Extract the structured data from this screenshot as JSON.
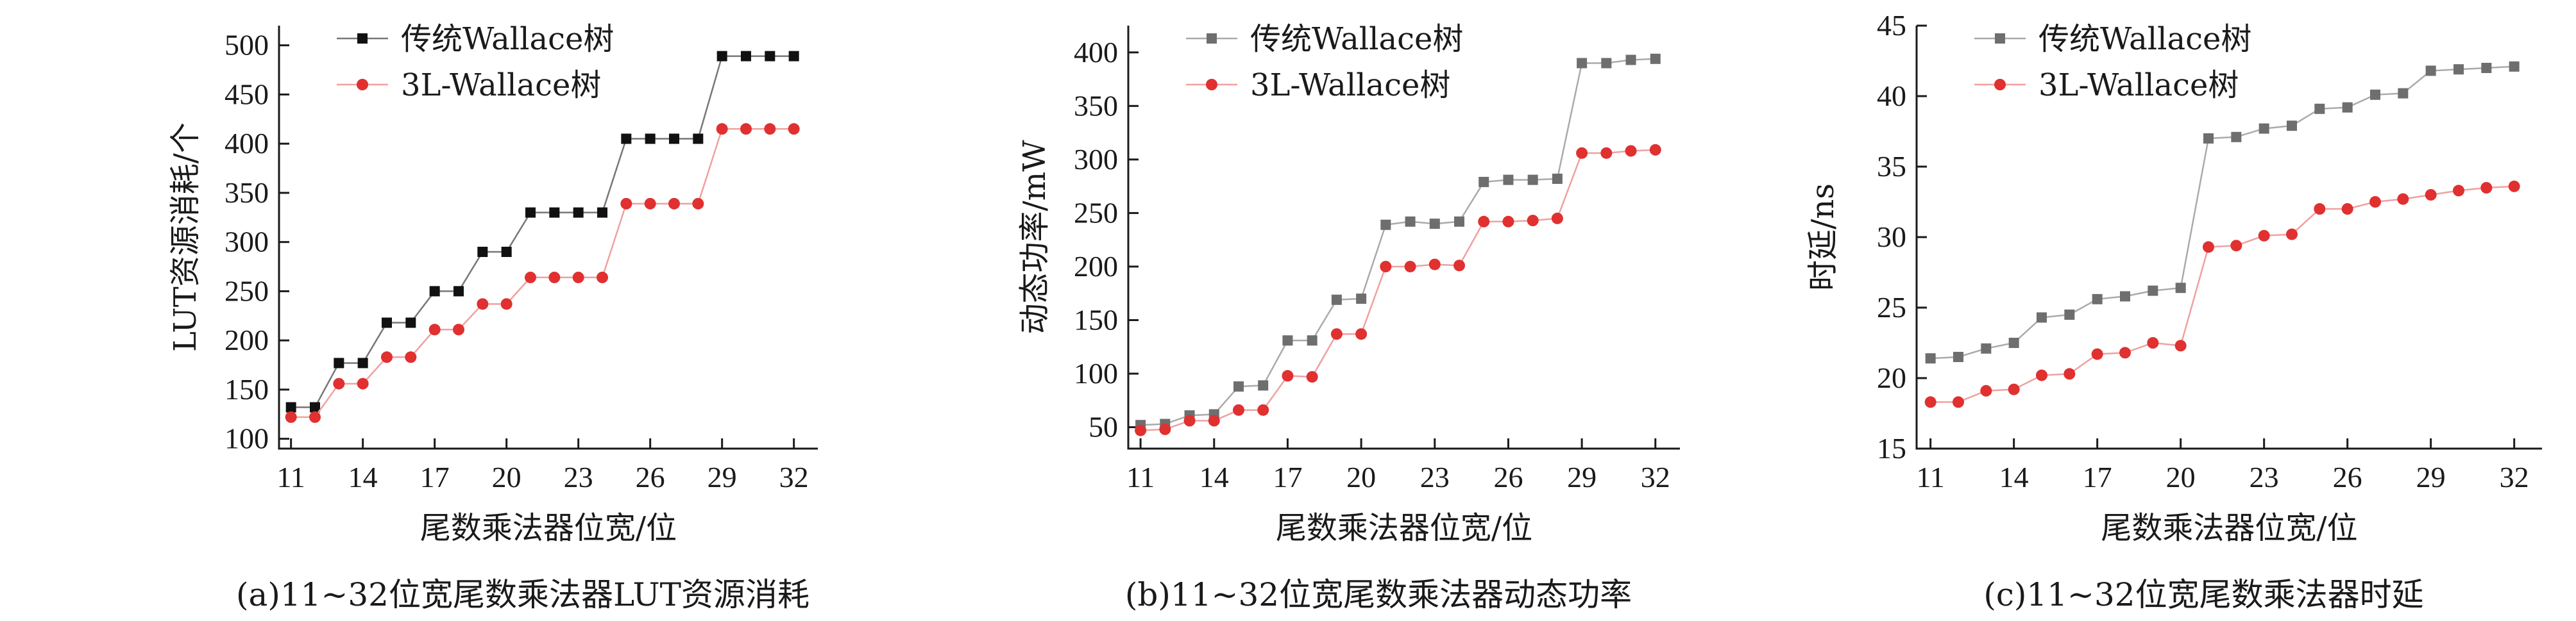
{
  "chart_data": [
    {
      "type": "line",
      "caption": "(a)11~32位宽尾数乘法器LUT资源消耗",
      "xlabel": "尾数乘法器位宽/位",
      "ylabel": "LUT资源消耗/个",
      "xlim": [
        10.5,
        33
      ],
      "ylim": [
        90,
        520
      ],
      "x_ticks": [
        11,
        14,
        17,
        20,
        23,
        26,
        29,
        32
      ],
      "y_ticks": [
        100,
        150,
        200,
        250,
        300,
        350,
        400,
        450,
        500
      ],
      "legend_position": "top-left",
      "x": [
        11,
        12,
        13,
        14,
        15,
        16,
        17,
        18,
        19,
        20,
        21,
        22,
        23,
        24,
        25,
        26,
        27,
        28,
        29,
        30,
        31,
        32
      ],
      "series": [
        {
          "name": "传统Wallace树",
          "color": "#111111",
          "line_color": "#777777",
          "marker": "square",
          "values": [
            132,
            132,
            177,
            177,
            218,
            218,
            250,
            250,
            290,
            290,
            330,
            330,
            330,
            330,
            405,
            405,
            405,
            405,
            489,
            489,
            489,
            489
          ]
        },
        {
          "name": "3L-Wallace树",
          "color": "#e03030",
          "line_color": "#f0a0a0",
          "marker": "circle",
          "values": [
            122,
            122,
            156,
            156,
            183,
            183,
            211,
            211,
            237,
            237,
            264,
            264,
            264,
            264,
            339,
            339,
            339,
            339,
            415,
            415,
            415,
            415
          ]
        }
      ]
    },
    {
      "type": "line",
      "caption": "(b)11~32位宽尾数乘法器动态功率",
      "xlabel": "尾数乘法器位宽/位",
      "ylabel": "动态功率/mW",
      "xlim": [
        10.5,
        33
      ],
      "ylim": [
        30,
        425
      ],
      "x_ticks": [
        11,
        14,
        17,
        20,
        23,
        26,
        29,
        32
      ],
      "y_ticks": [
        50,
        100,
        150,
        200,
        250,
        300,
        350,
        400
      ],
      "legend_position": "top-left",
      "x": [
        11,
        12,
        13,
        14,
        15,
        16,
        17,
        18,
        19,
        20,
        21,
        22,
        23,
        24,
        25,
        26,
        27,
        28,
        29,
        30,
        31,
        32
      ],
      "series": [
        {
          "name": "传统Wallace树",
          "color": "#6e6e6e",
          "line_color": "#aaaaaa",
          "marker": "square",
          "values": [
            52,
            53,
            61,
            62,
            88,
            89,
            131,
            131,
            169,
            170,
            239,
            242,
            240,
            242,
            279,
            281,
            281,
            282,
            390,
            390,
            393,
            394
          ]
        },
        {
          "name": "3L-Wallace树",
          "color": "#e03030",
          "line_color": "#f0a0a0",
          "marker": "circle",
          "values": [
            47,
            48,
            56,
            56,
            66,
            66,
            98,
            97,
            137,
            137,
            200,
            200,
            202,
            201,
            242,
            242,
            243,
            245,
            306,
            306,
            308,
            309
          ]
        }
      ]
    },
    {
      "type": "line",
      "caption": "(c)11~32位宽尾数乘法器时延",
      "xlabel": "尾数乘法器位宽/位",
      "ylabel": "时延/ns",
      "xlim": [
        10.5,
        33
      ],
      "ylim": [
        15,
        45
      ],
      "x_ticks": [
        11,
        14,
        17,
        20,
        23,
        26,
        29,
        32
      ],
      "y_ticks": [
        15,
        20,
        25,
        30,
        35,
        40,
        45
      ],
      "legend_position": "top-left",
      "x": [
        11,
        12,
        13,
        14,
        15,
        16,
        17,
        18,
        19,
        20,
        21,
        22,
        23,
        24,
        25,
        26,
        27,
        28,
        29,
        30,
        31,
        32
      ],
      "series": [
        {
          "name": "传统Wallace树",
          "color": "#6e6e6e",
          "line_color": "#aaaaaa",
          "marker": "square",
          "values": [
            21.4,
            21.5,
            22.1,
            22.5,
            24.3,
            24.5,
            25.6,
            25.8,
            26.2,
            26.4,
            37.0,
            37.1,
            37.7,
            37.9,
            39.1,
            39.2,
            40.1,
            40.2,
            41.8,
            41.9,
            42.0,
            42.1
          ]
        },
        {
          "name": "3L-Wallace树",
          "color": "#e03030",
          "line_color": "#f0a0a0",
          "marker": "circle",
          "values": [
            18.3,
            18.3,
            19.1,
            19.2,
            20.2,
            20.3,
            21.7,
            21.8,
            22.5,
            22.3,
            29.3,
            29.4,
            30.1,
            30.2,
            32.0,
            32.0,
            32.5,
            32.7,
            33.0,
            33.3,
            33.5,
            33.6
          ]
        }
      ]
    }
  ]
}
